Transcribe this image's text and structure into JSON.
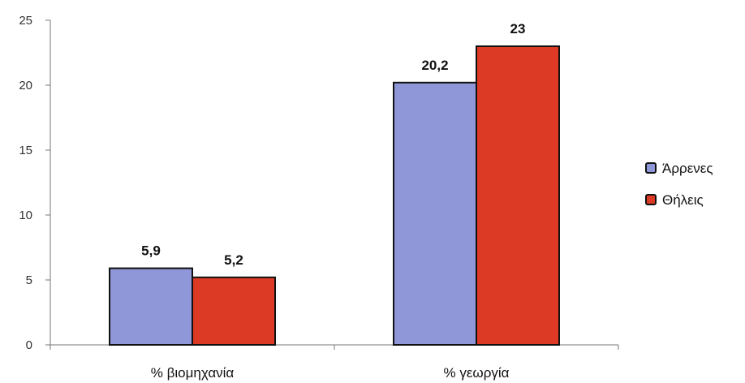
{
  "chart_data": {
    "type": "bar",
    "categories": [
      "% βιομηχανία",
      "% γεωργία"
    ],
    "series": [
      {
        "name": "Άρρενες",
        "values": [
          5.9,
          20.2
        ],
        "value_labels": [
          "5,9",
          "20,2"
        ],
        "color": "#9097d8"
      },
      {
        "name": "Θήλεις",
        "values": [
          5.2,
          23
        ],
        "value_labels": [
          "5,2",
          "23"
        ],
        "color": "#dd3a26"
      }
    ],
    "ylim": [
      0,
      25
    ],
    "yticks": [
      0,
      5,
      10,
      15,
      20,
      25
    ],
    "grid": false,
    "legend": "right"
  }
}
